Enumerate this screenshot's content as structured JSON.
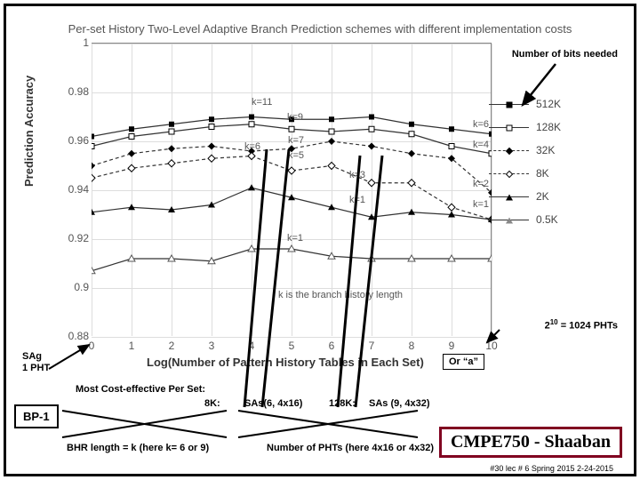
{
  "chart": {
    "title": "Per-set History Two-Level Adaptive Branch Prediction schemes with different implementation costs",
    "y_label": "Prediction Accuracy",
    "x_label": "Log(Number of Pattern History Tables in Each Set)",
    "y_ticks": [
      "1",
      "0.98",
      "0.96",
      "0.94",
      "0.92",
      "0.9",
      "0.88"
    ],
    "x_ticks": [
      "0",
      "1",
      "2",
      "3",
      "4",
      "5",
      "6",
      "7",
      "8",
      "9",
      "10"
    ],
    "inner_note": "k is the branch history length",
    "k_annotations": {
      "k11": "k=11",
      "k9": "k=9",
      "k7": "k=7",
      "k6a": "k=6",
      "k5": "k=5",
      "k3": "k=3",
      "k1a": "k=1",
      "k1b": "k=1",
      "k6b": "k=6",
      "k4": "k=4",
      "k2": "k=2",
      "k1c": "k=1"
    },
    "series": [
      {
        "label": "512K",
        "dashed": false,
        "marker": "sq-filled",
        "points": [
          [
            0,
            0.962
          ],
          [
            1,
            0.965
          ],
          [
            2,
            0.967
          ],
          [
            3,
            0.969
          ],
          [
            4,
            0.97
          ],
          [
            5,
            0.969
          ],
          [
            6,
            0.969
          ],
          [
            7,
            0.97
          ],
          [
            8,
            0.967
          ],
          [
            9,
            0.965
          ],
          [
            10,
            0.963
          ]
        ]
      },
      {
        "label": "128K",
        "dashed": false,
        "marker": "sq-open",
        "points": [
          [
            0,
            0.958
          ],
          [
            1,
            0.962
          ],
          [
            2,
            0.964
          ],
          [
            3,
            0.966
          ],
          [
            4,
            0.967
          ],
          [
            5,
            0.965
          ],
          [
            6,
            0.964
          ],
          [
            7,
            0.965
          ],
          [
            8,
            0.963
          ],
          [
            9,
            0.958
          ],
          [
            10,
            0.955
          ]
        ]
      },
      {
        "label": "32K",
        "dashed": true,
        "marker": "di-filled",
        "points": [
          [
            0,
            0.95
          ],
          [
            1,
            0.955
          ],
          [
            2,
            0.957
          ],
          [
            3,
            0.958
          ],
          [
            4,
            0.956
          ],
          [
            5,
            0.957
          ],
          [
            6,
            0.96
          ],
          [
            7,
            0.958
          ],
          [
            8,
            0.955
          ],
          [
            9,
            0.953
          ],
          [
            10,
            0.939
          ]
        ]
      },
      {
        "label": "8K",
        "dashed": true,
        "marker": "di-open",
        "points": [
          [
            0,
            0.945
          ],
          [
            1,
            0.949
          ],
          [
            2,
            0.951
          ],
          [
            3,
            0.953
          ],
          [
            4,
            0.954
          ],
          [
            5,
            0.948
          ],
          [
            6,
            0.95
          ],
          [
            7,
            0.943
          ],
          [
            8,
            0.943
          ],
          [
            9,
            0.933
          ],
          [
            10,
            0.928
          ]
        ]
      },
      {
        "label": "2K",
        "dashed": false,
        "marker": "tr-filled",
        "points": [
          [
            0,
            0.931
          ],
          [
            1,
            0.933
          ],
          [
            2,
            0.932
          ],
          [
            3,
            0.934
          ],
          [
            4,
            0.941
          ],
          [
            5,
            0.937
          ],
          [
            6,
            0.933
          ],
          [
            7,
            0.929
          ],
          [
            8,
            0.931
          ],
          [
            9,
            0.93
          ],
          [
            10,
            0.928
          ]
        ]
      },
      {
        "label": "0.5K",
        "dashed": false,
        "marker": "tr-open",
        "points": [
          [
            0,
            0.907
          ],
          [
            1,
            0.912
          ],
          [
            2,
            0.912
          ],
          [
            3,
            0.911
          ],
          [
            4,
            0.916
          ],
          [
            5,
            0.916
          ],
          [
            6,
            0.913
          ],
          [
            7,
            0.912
          ],
          [
            8,
            0.912
          ],
          [
            9,
            0.912
          ],
          [
            10,
            0.912
          ]
        ]
      }
    ]
  },
  "annotations": {
    "nb": "Number of bits needed",
    "sag": "SAg\n1 PHT",
    "or_a": "Or “a”",
    "pht": "= 1024 PHTs",
    "pht_exp_base": "2",
    "pht_exp": "10",
    "cost": "Most Cost-effective Per Set:",
    "eight_k": "8K:",
    "sas6": "SAs(6, 4x16)",
    "onetwo8k": "128K:",
    "sas9": "SAs (9, 4x32)",
    "bp1": "BP-1",
    "cmpe": "CMPE750 - Shaaban",
    "bhr": "BHR length = k   (here k= 6 or 9)",
    "nphts": "Number of PHTs (here 4x16 or 4x32)",
    "page": "#30  lec # 6  Spring 2015  2-24-2015"
  }
}
